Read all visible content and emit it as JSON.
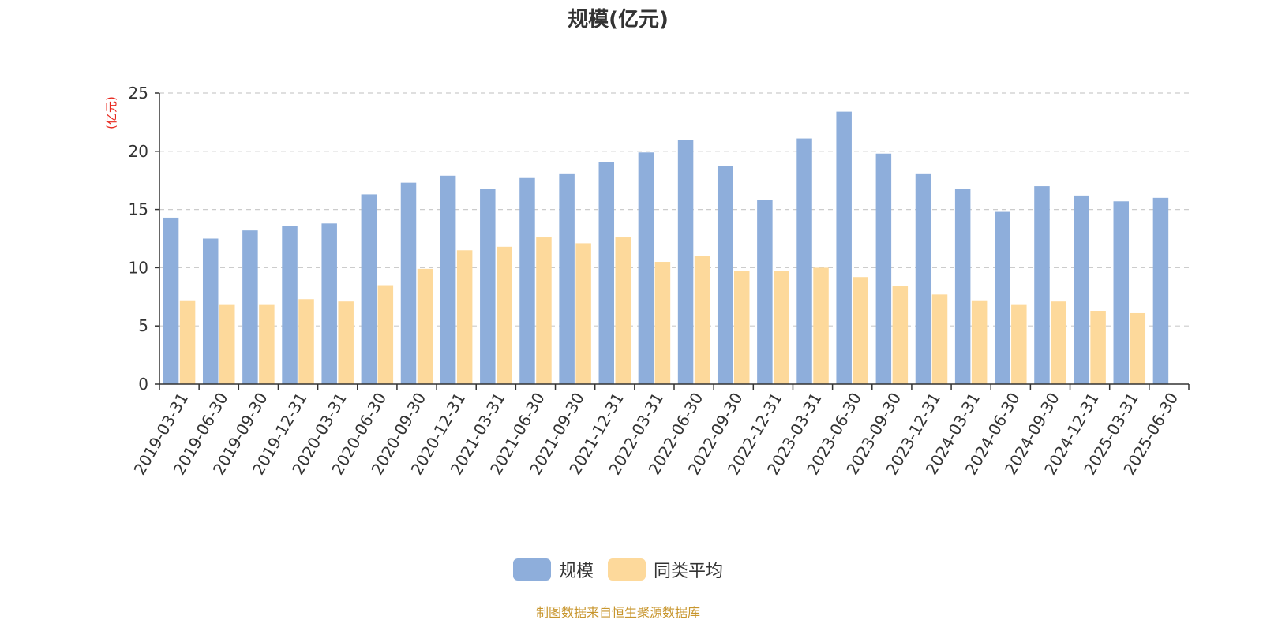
{
  "chart_data": {
    "type": "bar",
    "title": "规模(亿元)",
    "ylabel": "(亿元)",
    "ylim": [
      0,
      25
    ],
    "yticks": [
      0,
      5,
      10,
      15,
      20,
      25
    ],
    "grid": true,
    "legend_position": "bottom",
    "categories": [
      "2019-03-31",
      "2019-06-30",
      "2019-09-30",
      "2019-12-31",
      "2020-03-31",
      "2020-06-30",
      "2020-09-30",
      "2020-12-31",
      "2021-03-31",
      "2021-06-30",
      "2021-09-30",
      "2021-12-31",
      "2022-03-31",
      "2022-06-30",
      "2022-09-30",
      "2022-12-31",
      "2023-03-31",
      "2023-06-30",
      "2023-09-30",
      "2023-12-31",
      "2024-03-31",
      "2024-06-30",
      "2024-09-30",
      "2024-12-31",
      "2025-03-31",
      "2025-06-30"
    ],
    "series": [
      {
        "name": "规模",
        "color": "#8eaedb",
        "values": [
          14.3,
          12.5,
          13.2,
          13.6,
          13.8,
          16.3,
          17.3,
          17.9,
          16.8,
          17.7,
          18.1,
          19.1,
          19.9,
          21.0,
          18.7,
          15.8,
          21.1,
          23.4,
          19.8,
          18.1,
          16.8,
          14.8,
          17.0,
          16.2,
          15.7,
          16.0
        ]
      },
      {
        "name": "同类平均",
        "color": "#fdd99b",
        "values": [
          7.2,
          6.8,
          6.8,
          7.3,
          7.1,
          8.5,
          9.9,
          11.5,
          11.8,
          12.6,
          12.1,
          12.6,
          10.5,
          11.0,
          9.7,
          9.7,
          10.0,
          9.2,
          8.4,
          7.7,
          7.2,
          6.8,
          7.1,
          6.3,
          6.1,
          null
        ]
      }
    ]
  },
  "footer": {
    "source": "制图数据来自恒生聚源数据库"
  }
}
